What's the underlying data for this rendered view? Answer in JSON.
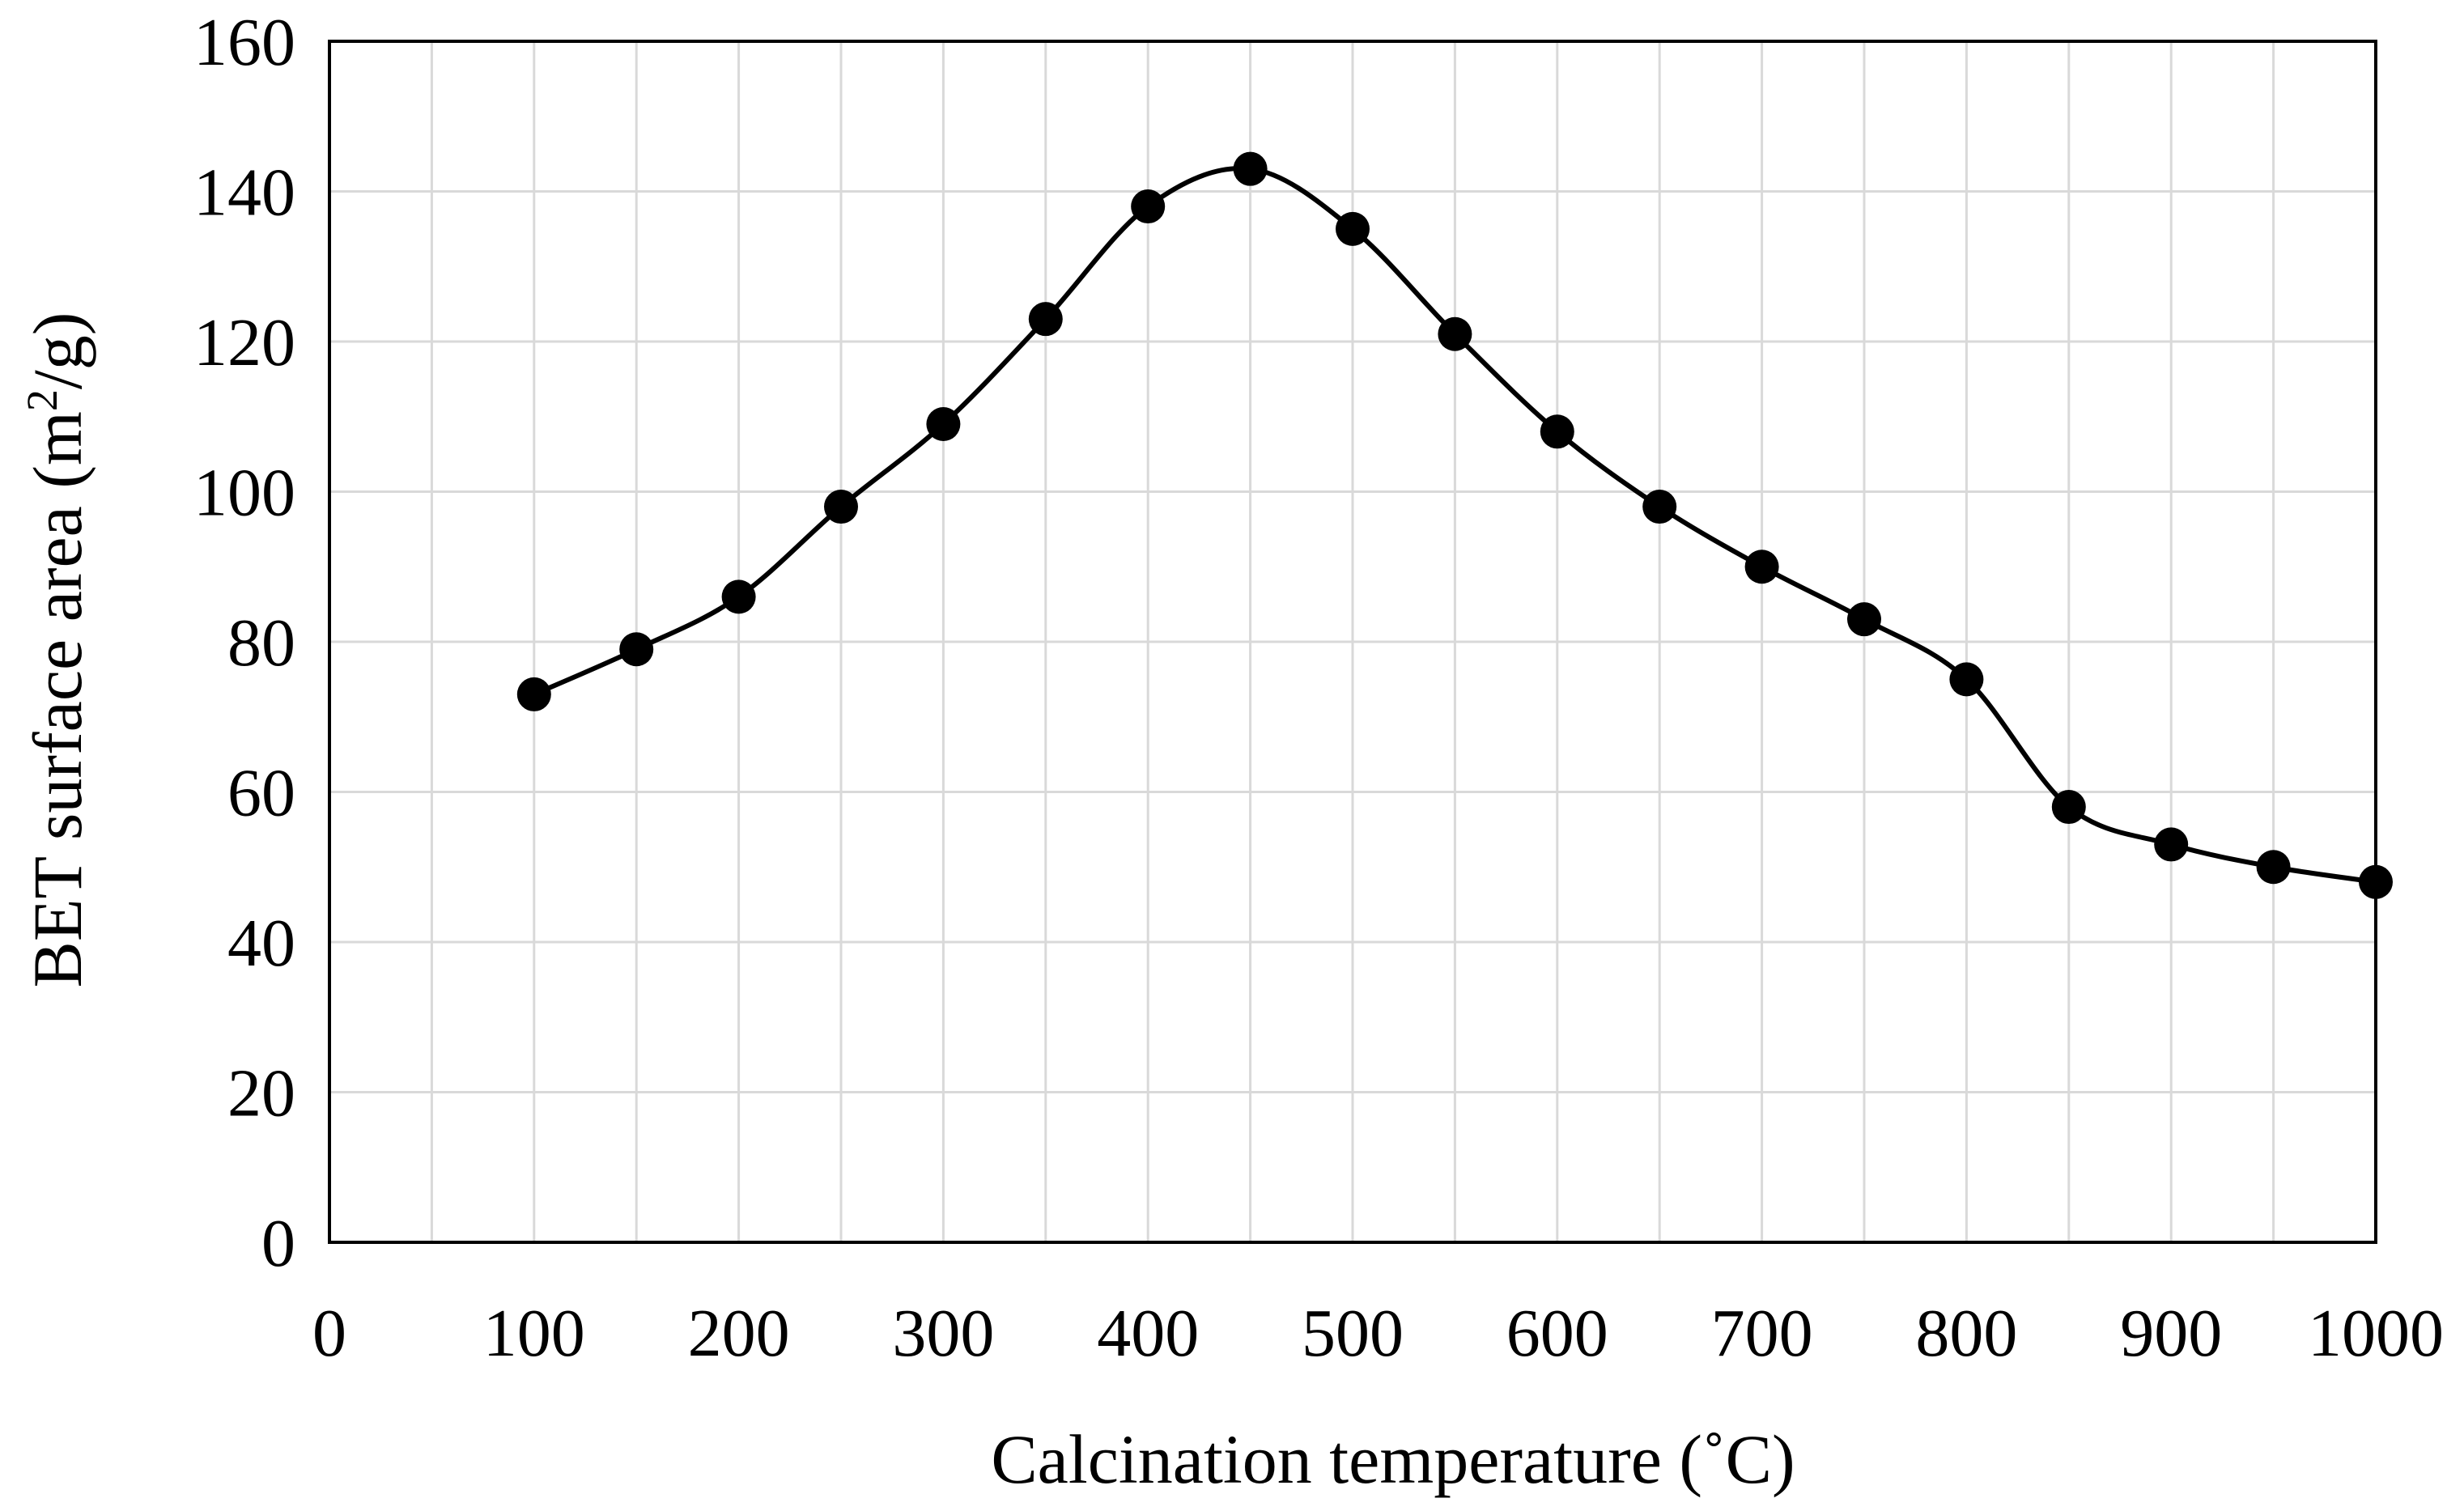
{
  "chart_data": {
    "type": "line",
    "title": "",
    "xlabel": "Calcination temperature (˚C)",
    "ylabel_main": "BET surface area (m",
    "ylabel_sup": "2",
    "ylabel_tail": "/g)",
    "xlim": [
      0,
      1000
    ],
    "ylim": [
      0,
      160
    ],
    "xticks": [
      0,
      100,
      200,
      300,
      400,
      500,
      600,
      700,
      800,
      900,
      1000
    ],
    "xtick_labels": [
      "0",
      "100",
      "200",
      "300",
      "400",
      "500",
      "600",
      "700",
      "800",
      "900",
      "1000"
    ],
    "yticks": [
      0,
      20,
      40,
      60,
      80,
      100,
      120,
      140,
      160
    ],
    "ytick_labels": [
      "0",
      "20",
      "40",
      "60",
      "80",
      "100",
      "120",
      "140",
      "160"
    ],
    "xgrid_step": 50,
    "grid": true,
    "legend": "none",
    "series": [
      {
        "name": "BET surface area",
        "marker": "circle",
        "smooth": true,
        "x": [
          100,
          150,
          200,
          250,
          300,
          350,
          400,
          450,
          500,
          550,
          600,
          650,
          700,
          750,
          800,
          850,
          900,
          950,
          1000
        ],
        "values": [
          73,
          79,
          86,
          98,
          109,
          123,
          138,
          143,
          135,
          121,
          108,
          98,
          90,
          83,
          75,
          58,
          53,
          50,
          48
        ]
      }
    ],
    "colors": {
      "line": "#000000",
      "marker": "#000000",
      "grid": "#d9d9d9",
      "frame": "#000000"
    }
  }
}
